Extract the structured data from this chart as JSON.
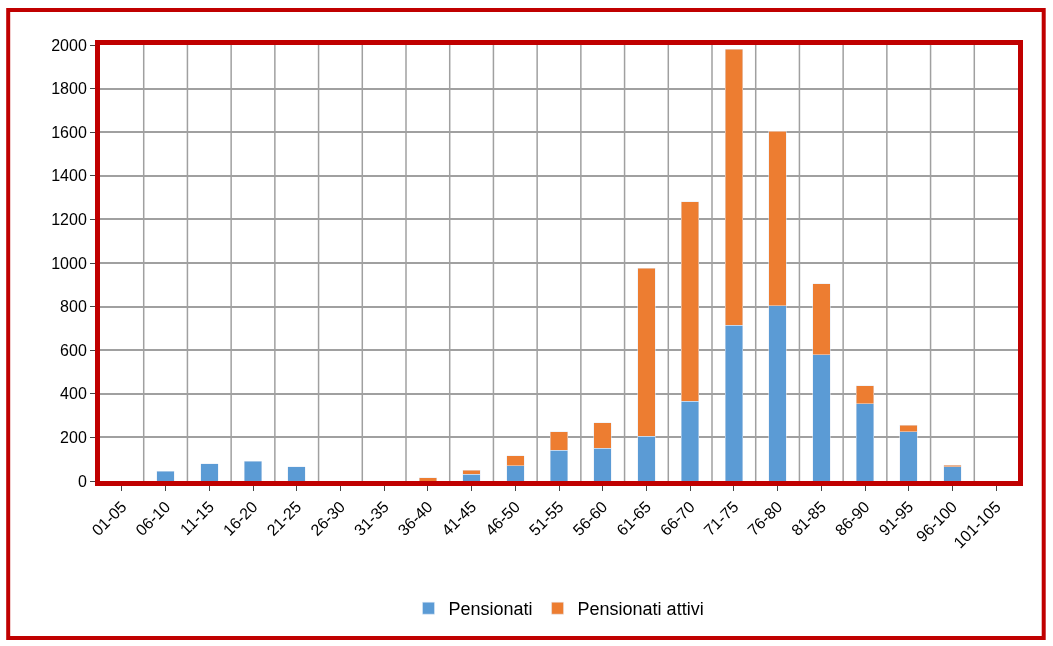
{
  "chart_data": {
    "type": "bar",
    "stacked": true,
    "categories": [
      "01-05",
      "06-10",
      "11-15",
      "16-20",
      "21-25",
      "26-30",
      "31-35",
      "36-40",
      "41-45",
      "46-50",
      "51-55",
      "56-60",
      "61-65",
      "66-70",
      "71-75",
      "76-80",
      "81-85",
      "86-90",
      "91-95",
      "96-100",
      "101-105"
    ],
    "series": [
      {
        "name": "Pensionati",
        "color": "#5b9bd5",
        "values": [
          null,
          45,
          80,
          90,
          65,
          null,
          null,
          null,
          30,
          70,
          140,
          150,
          205,
          365,
          715,
          805,
          580,
          355,
          225,
          65,
          null
        ]
      },
      {
        "name": "Pensionati attivi",
        "color": "#ed7d31",
        "values": [
          null,
          null,
          null,
          null,
          null,
          null,
          null,
          15,
          20,
          45,
          85,
          118,
          770,
          915,
          1265,
          800,
          325,
          82,
          30,
          7,
          null
        ]
      }
    ],
    "ylim": [
      0,
      2000
    ],
    "yticks": [
      0,
      200,
      400,
      600,
      800,
      1000,
      1200,
      1400,
      1600,
      1800,
      2000
    ],
    "grid": true,
    "legend": "bottom"
  }
}
